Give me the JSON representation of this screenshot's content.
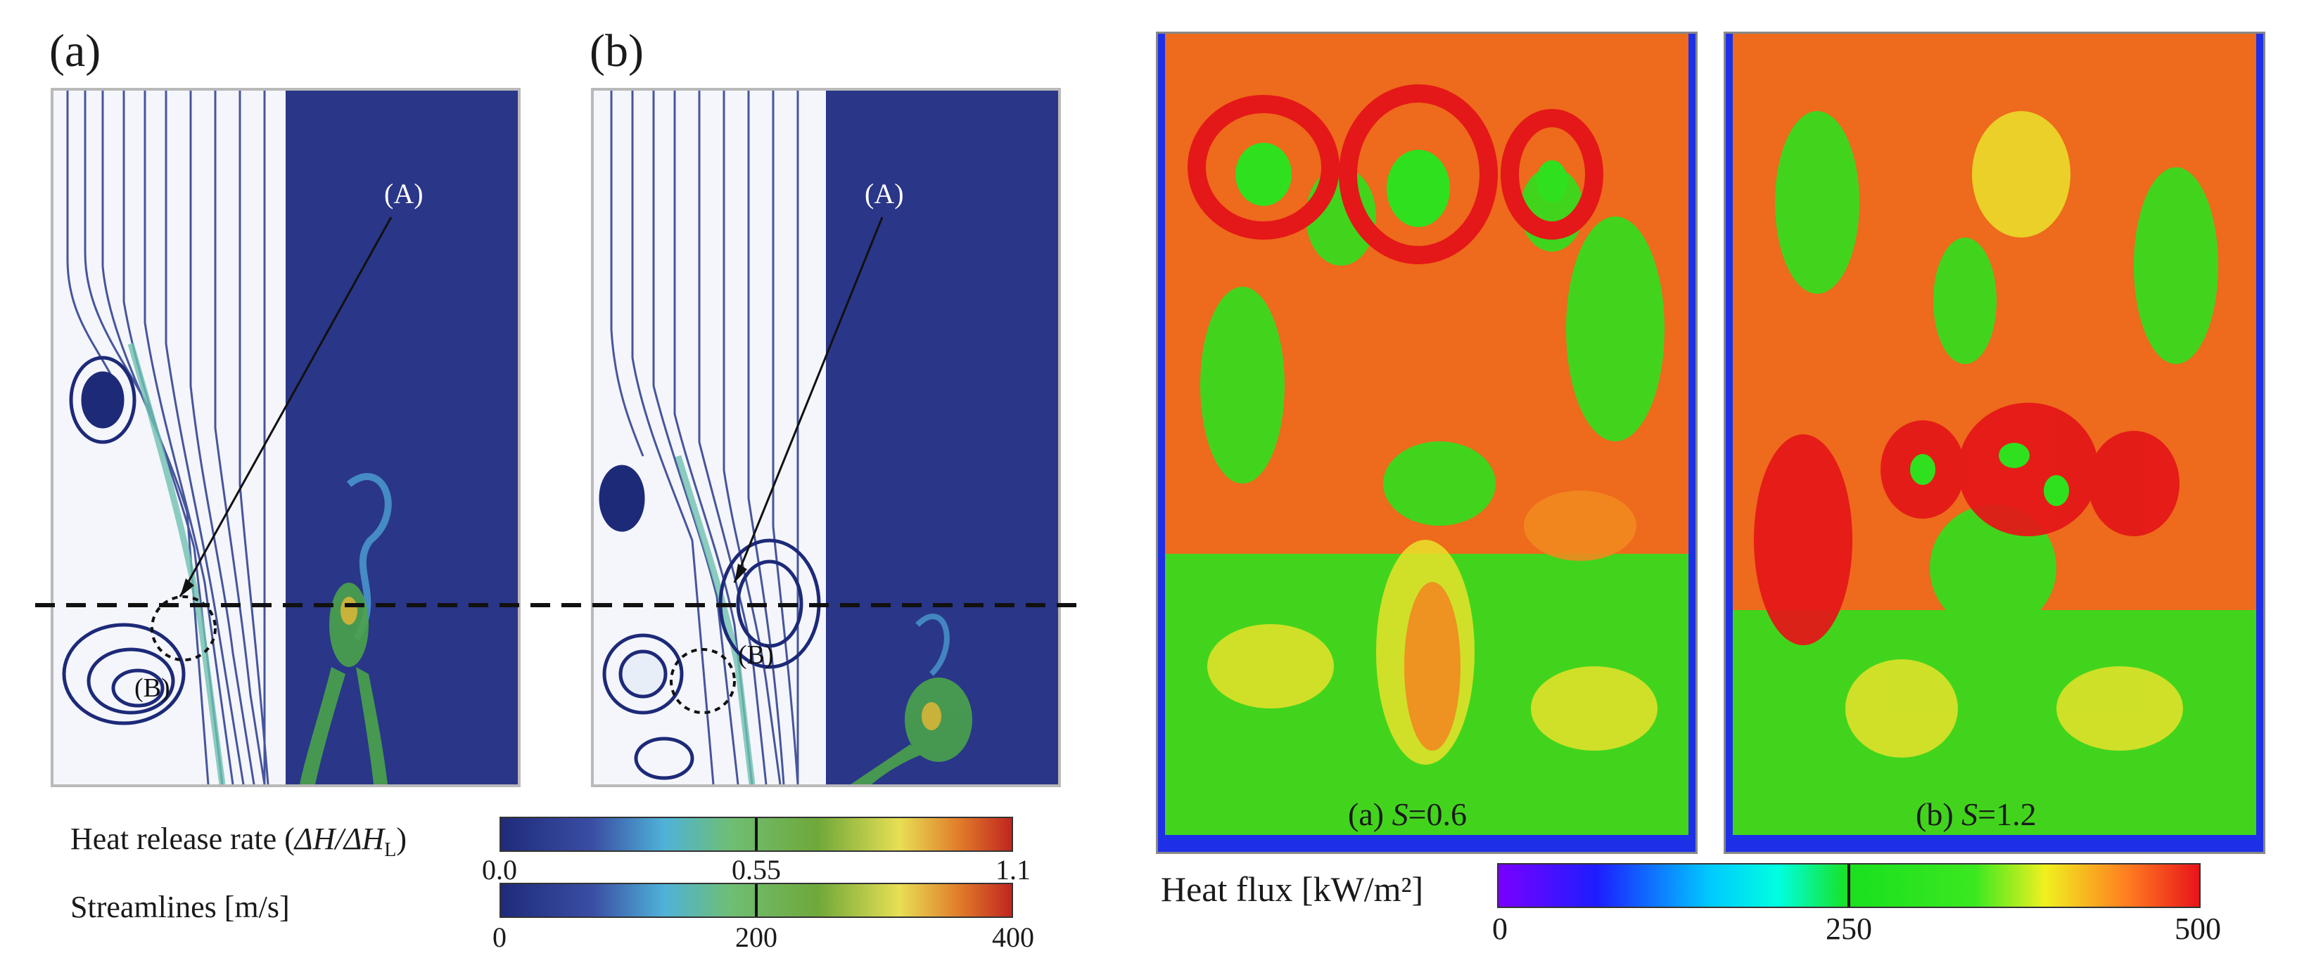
{
  "left_figure": {
    "panel_a_label": "(a)",
    "panel_b_label": "(b)",
    "marker_a": "(A)",
    "marker_b": "(B)",
    "colorbar_hrr": {
      "label_prefix": "Heat release rate (",
      "label_math": "ΔH/ΔH",
      "label_sub": "L",
      "label_suffix": ")",
      "ticks": [
        "0.0",
        "0.55",
        "1.1"
      ]
    },
    "colorbar_streamlines": {
      "label": "Streamlines [m/s]",
      "ticks": [
        "0",
        "200",
        "400"
      ]
    }
  },
  "right_figure": {
    "caption_a_prefix": "(a) ",
    "caption_a_var": "S",
    "caption_a_value": "=0.6",
    "caption_b_prefix": "(b) ",
    "caption_b_var": "S",
    "caption_b_value": "=1.2",
    "colorbar": {
      "label": "Heat flux [kW/m²]",
      "ticks": [
        "0",
        "250",
        "500"
      ]
    }
  },
  "colors": {
    "flow_background": "#2a3688",
    "streamline_dark": "#1d2a78",
    "heatflux_red": "#e8241a",
    "heatflux_green": "#18e020",
    "frame": "#b9b9b9"
  }
}
